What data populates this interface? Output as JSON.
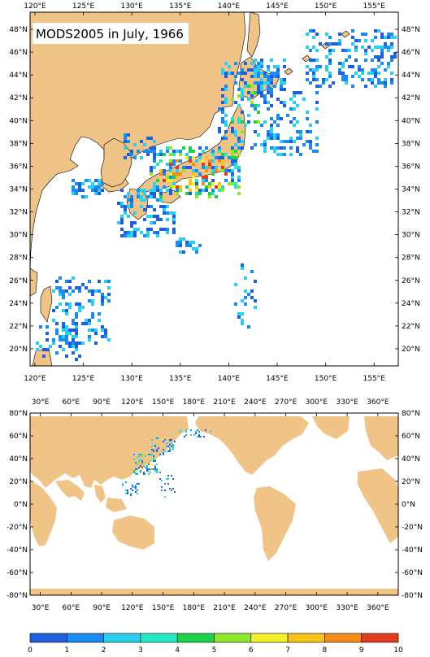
{
  "colors": {
    "land": "#f0c486",
    "ocean": "#ffffff",
    "coast": "#000000",
    "scale": [
      "#1f5fdc",
      "#1b8cf0",
      "#2ad1ee",
      "#28e8c4",
      "#1dd24a",
      "#8fe82a",
      "#f3f02a",
      "#f7c21a",
      "#f28c1a",
      "#e23b1e"
    ]
  },
  "top_map": {
    "title": "MODS2005 in July, 1966",
    "lon_ticks": [
      "120°E",
      "125°E",
      "130°E",
      "135°E",
      "140°E",
      "145°E",
      "150°E",
      "155°E"
    ],
    "lat_ticks": [
      "48°N",
      "46°N",
      "44°N",
      "42°N",
      "40°N",
      "38°N",
      "36°N",
      "34°N",
      "32°N",
      "30°N",
      "28°N",
      "26°N",
      "24°N",
      "22°N",
      "20°N"
    ],
    "lon_range": [
      119.5,
      157.5
    ],
    "lat_range": [
      18.5,
      49.5
    ]
  },
  "bottom_map": {
    "lon_ticks": [
      "30°E",
      "60°E",
      "90°E",
      "120°E",
      "150°E",
      "180°E",
      "210°E",
      "240°E",
      "270°E",
      "300°E",
      "330°E",
      "360°E"
    ],
    "lat_ticks": [
      "80°N",
      "60°N",
      "40°N",
      "20°N",
      "0°N",
      "-20°N",
      "-40°N",
      "-60°N",
      "-80°N"
    ],
    "lon_range": [
      20,
      380
    ],
    "lat_range": [
      -80,
      80
    ]
  },
  "colorbar": {
    "labels": [
      "0",
      "1",
      "2",
      "3",
      "4",
      "5",
      "6",
      "7",
      "8",
      "9",
      "10"
    ]
  }
}
